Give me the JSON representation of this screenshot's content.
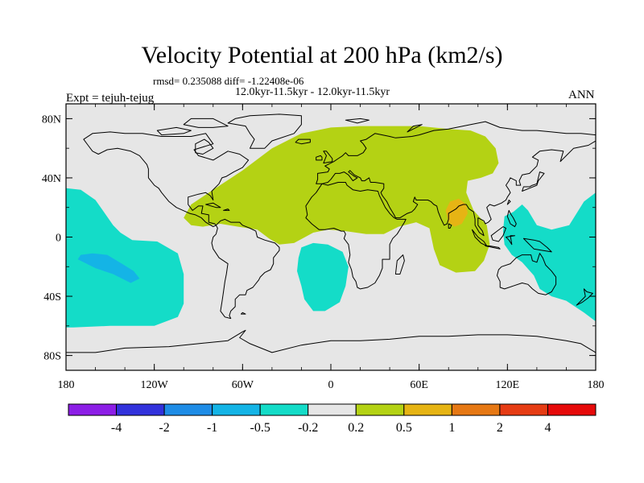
{
  "chart_data": {
    "type": "heatmap",
    "title": "Velocity Potential at 200 hPa (km2/s)",
    "stats_line": "rmsd= 0.235088 diff= -1.22408e-06",
    "period_line": "12.0kyr-11.5kyr - 12.0kyr-11.5kyr",
    "experiment_label": "Expt = tejuh-tejug",
    "season_label": "ANN",
    "x_ticks": [
      "180",
      "120W",
      "60W",
      "0",
      "60E",
      "120E",
      "180"
    ],
    "y_ticks": [
      "80N",
      "40N",
      "0",
      "40S",
      "80S"
    ],
    "lon_range": [
      -180,
      180
    ],
    "lat_range": [
      -90,
      90
    ],
    "colorbar": {
      "labels": [
        "-4",
        "-2",
        "-1",
        "-0.5",
        "-0.2",
        "0.2",
        "0.5",
        "1",
        "2",
        "4"
      ],
      "colors": [
        "#8c1ee6",
        "#3232dc",
        "#1e8ce6",
        "#14b4e6",
        "#14dcc8",
        "#e6e6e6",
        "#b4d214",
        "#e6b414",
        "#e67814",
        "#e63c14",
        "#e60a0a"
      ]
    },
    "regions": [
      {
        "name": "Eurasia-Africa positive",
        "bin": "0.2 to 0.5",
        "lon": [
          -100,
          115
        ],
        "lat": [
          -25,
          75
        ]
      },
      {
        "name": "South Asia positive",
        "bin": "0.5 to 1",
        "lon": [
          78,
          93
        ],
        "lat": [
          7,
          25
        ]
      },
      {
        "name": "Pacific negative",
        "bin": "-0.5 to -0.2",
        "lon": [
          -180,
          -100
        ],
        "lat": [
          -60,
          35
        ]
      },
      {
        "name": "Pacific deeper negative",
        "bin": "-1 to -0.5",
        "lon": [
          -172,
          -130
        ],
        "lat": [
          -30,
          -10
        ]
      },
      {
        "name": "South Atlantic negative",
        "bin": "-0.5 to -0.2",
        "lon": [
          -23,
          12
        ],
        "lat": [
          -50,
          -5
        ]
      },
      {
        "name": "West Pacific negative",
        "bin": "-0.5 to -0.2",
        "lon": [
          117,
          180
        ],
        "lat": [
          -60,
          30
        ]
      }
    ]
  }
}
